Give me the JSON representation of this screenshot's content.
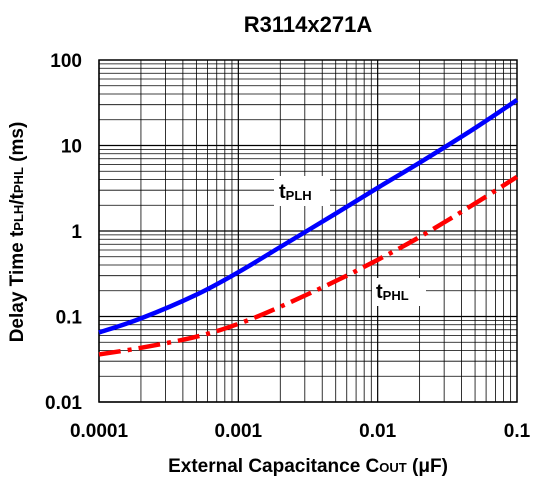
{
  "chart_data": {
    "type": "line",
    "title": "R3114x271A",
    "xlabel": {
      "main": "External Capacitance C",
      "sub": "OUT",
      "unit": " (μF)"
    },
    "ylabel": {
      "p1": "Delay Time t",
      "s1": "PLH",
      "p2": "/t",
      "s2": "PHL",
      "p3": " (ms)"
    },
    "x_scale": "log",
    "y_scale": "log",
    "xlim": [
      0.0001,
      0.1
    ],
    "ylim": [
      0.01,
      100
    ],
    "grid": true,
    "x_ticks": [
      {
        "value": 0.0001,
        "label": "0.0001"
      },
      {
        "value": 0.001,
        "label": "0.001"
      },
      {
        "value": 0.01,
        "label": "0.01"
      },
      {
        "value": 0.1,
        "label": "0.1"
      }
    ],
    "y_ticks": [
      {
        "value": 0.01,
        "label": "0.01"
      },
      {
        "value": 0.1,
        "label": "0.1"
      },
      {
        "value": 1,
        "label": "1"
      },
      {
        "value": 10,
        "label": "10"
      },
      {
        "value": 100,
        "label": "100"
      }
    ],
    "series": [
      {
        "name": "tPLH",
        "label_prefix": "t",
        "label_sub": "PLH",
        "color": "#0000ff",
        "style": "solid",
        "x": [
          0.0001,
          0.0002,
          0.0005,
          0.001,
          0.002,
          0.005,
          0.01,
          0.02,
          0.05,
          0.1
        ],
        "y": [
          0.065,
          0.095,
          0.18,
          0.33,
          0.65,
          1.6,
          3.2,
          6.3,
          16,
          34
        ]
      },
      {
        "name": "tPHL",
        "label_prefix": "t",
        "label_sub": "PHL",
        "color": "#ff0000",
        "style": "dashdot",
        "x": [
          0.0001,
          0.0002,
          0.0005,
          0.001,
          0.002,
          0.005,
          0.01,
          0.02,
          0.05,
          0.1
        ],
        "y": [
          0.036,
          0.043,
          0.058,
          0.082,
          0.13,
          0.26,
          0.46,
          0.85,
          2.1,
          4.3
        ]
      }
    ]
  }
}
